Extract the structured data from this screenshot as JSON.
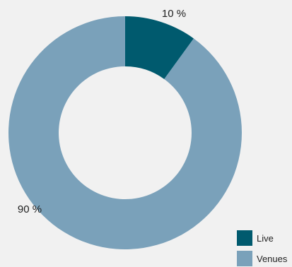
{
  "chart_data": {
    "type": "pie",
    "donut": true,
    "categories": [
      "Live",
      "Venues"
    ],
    "values": [
      10,
      90
    ],
    "colors": [
      "#005a6e",
      "#7aa1ba"
    ],
    "data_labels": [
      "10 %",
      "90 %"
    ],
    "legend": {
      "placement": "bottom-right",
      "items": [
        "Live",
        "Venues"
      ]
    },
    "title": "",
    "xlabel": "",
    "ylabel": ""
  },
  "background_color": "#f1f1f1"
}
